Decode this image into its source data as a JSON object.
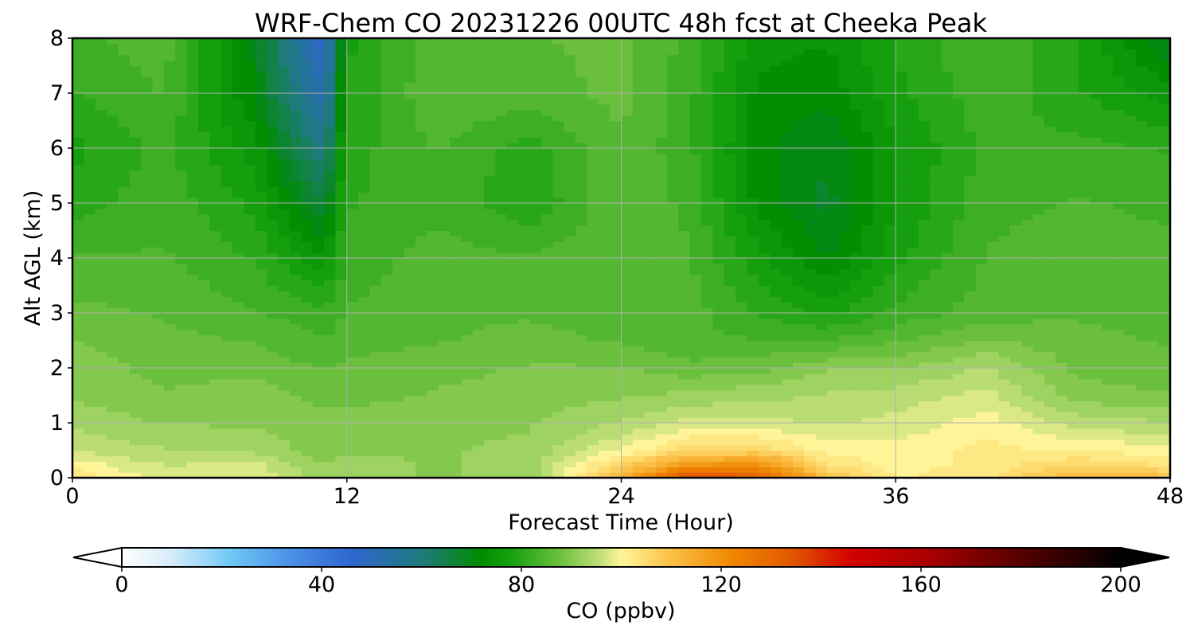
{
  "chart_data": {
    "type": "heatmap",
    "title": "WRF-Chem CO  20231226 00UTC 48h fcst at Cheeka Peak",
    "xlabel": "Forecast Time (Hour)",
    "ylabel": "Alt AGL (km)",
    "xlim": [
      0,
      48
    ],
    "ylim": [
      0,
      8
    ],
    "xticks": [
      "0",
      "12",
      "24",
      "36",
      "48"
    ],
    "yticks": [
      "0",
      "1",
      "2",
      "3",
      "4",
      "5",
      "6",
      "7",
      "8"
    ],
    "grid": true,
    "colorbar": {
      "label": "CO  (ppbv)",
      "range": [
        0,
        200
      ],
      "ticks": [
        "0",
        "40",
        "80",
        "120",
        "160",
        "200"
      ],
      "extend": "both",
      "orientation": "horizontal",
      "stops": [
        {
          "v": 0,
          "c": "#ffffff"
        },
        {
          "v": 10,
          "c": "#d6ecfa"
        },
        {
          "v": 22,
          "c": "#6ec8f6"
        },
        {
          "v": 34,
          "c": "#4b8fe6"
        },
        {
          "v": 46,
          "c": "#2f66d0"
        },
        {
          "v": 60,
          "c": "#1e7a7c"
        },
        {
          "v": 72,
          "c": "#008c00"
        },
        {
          "v": 78,
          "c": "#17a10f"
        },
        {
          "v": 88,
          "c": "#6ec13f"
        },
        {
          "v": 96,
          "c": "#c4e07b"
        },
        {
          "v": 100,
          "c": "#fff598"
        },
        {
          "v": 110,
          "c": "#fbc045"
        },
        {
          "v": 122,
          "c": "#f08800"
        },
        {
          "v": 134,
          "c": "#e25800"
        },
        {
          "v": 146,
          "c": "#d20000"
        },
        {
          "v": 162,
          "c": "#a60000"
        },
        {
          "v": 178,
          "c": "#5e0000"
        },
        {
          "v": 190,
          "c": "#2b0000"
        },
        {
          "v": 200,
          "c": "#000000"
        }
      ]
    },
    "x": [
      0,
      4,
      8,
      11,
      12,
      16,
      20,
      24,
      27,
      30,
      33,
      36,
      40,
      44,
      48
    ],
    "y": [
      0,
      0.25,
      0.5,
      1,
      1.5,
      2,
      2.5,
      3,
      4,
      5,
      6,
      7,
      8
    ],
    "z": [
      [
        104,
        97,
        99,
        91,
        92,
        91,
        92,
        112,
        138,
        132,
        110,
        101,
        103,
        112,
        110
      ],
      [
        100,
        96,
        97,
        91,
        92,
        91,
        92,
        106,
        118,
        120,
        104,
        100,
        102,
        106,
        103
      ],
      [
        96,
        94,
        93,
        90,
        91,
        91,
        92,
        99,
        106,
        106,
        100,
        100,
        102,
        101,
        100
      ],
      [
        93,
        91,
        91,
        90,
        90,
        90,
        91,
        94,
        97,
        97,
        96,
        97,
        100,
        95,
        94
      ],
      [
        91,
        89,
        90,
        88,
        88,
        89,
        90,
        91,
        92,
        93,
        94,
        95,
        97,
        90,
        89
      ],
      [
        90,
        88,
        88,
        86,
        87,
        88,
        89,
        89,
        87,
        88,
        91,
        91,
        94,
        88,
        87
      ],
      [
        89,
        87,
        86,
        84,
        85,
        86,
        87,
        86,
        84,
        84,
        84,
        86,
        89,
        87,
        86
      ],
      [
        87,
        86,
        84,
        82,
        84,
        86,
        86,
        85,
        85,
        81,
        78,
        82,
        85,
        86,
        85
      ],
      [
        84,
        84,
        81,
        74,
        82,
        85,
        84,
        86,
        84,
        77,
        71,
        78,
        84,
        85,
        85
      ],
      [
        80,
        83,
        78,
        66,
        81,
        83,
        79,
        86,
        83,
        73,
        68,
        76,
        83,
        84,
        83
      ],
      [
        78,
        82,
        75,
        58,
        80,
        84,
        80,
        86,
        82,
        72,
        69,
        76,
        82,
        82,
        81
      ],
      [
        81,
        84,
        71,
        51,
        79,
        86,
        85,
        87,
        82,
        73,
        72,
        78,
        83,
        79,
        75
      ],
      [
        83,
        85,
        70,
        46,
        78,
        86,
        86,
        87,
        83,
        75,
        74,
        79,
        84,
        79,
        68
      ]
    ]
  }
}
